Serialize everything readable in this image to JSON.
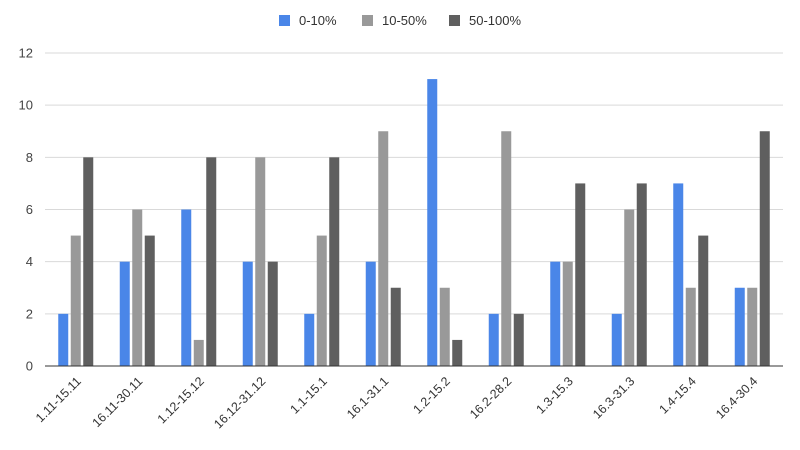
{
  "chart_data": {
    "type": "bar",
    "categories": [
      "1.11-15.11",
      "16.11-30.11",
      "1.12-15.12",
      "16.12-31.12",
      "1.1-15.1",
      "16.1-31.1",
      "1.2-15.2",
      "16.2-28.2",
      "1.3-15.3",
      "16.3-31.3",
      "1.4-15.4",
      "16.4-30.4"
    ],
    "series": [
      {
        "name": "0-10%",
        "color": "#4a86e8",
        "values": [
          2,
          4,
          6,
          4,
          2,
          4,
          11,
          2,
          4,
          2,
          7,
          3
        ]
      },
      {
        "name": "10-50%",
        "color": "#999999",
        "values": [
          5,
          6,
          1,
          8,
          5,
          9,
          3,
          9,
          4,
          6,
          3,
          3
        ]
      },
      {
        "name": "50-100%",
        "color": "#5f5f5f",
        "values": [
          8,
          5,
          8,
          4,
          8,
          3,
          1,
          2,
          7,
          7,
          5,
          9
        ]
      }
    ],
    "yticks": [
      "0",
      "2",
      "4",
      "6",
      "8",
      "10",
      "12"
    ],
    "ylim": [
      0,
      12
    ],
    "title": "",
    "xlabel": "",
    "ylabel": "",
    "grid": true,
    "legend_position": "top-center"
  }
}
